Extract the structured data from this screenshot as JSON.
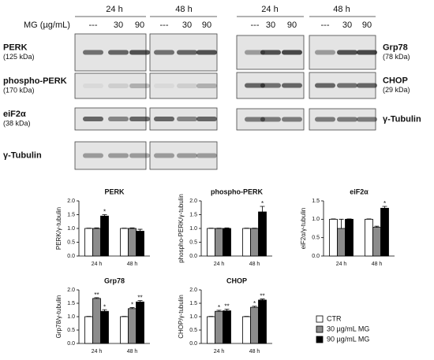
{
  "blots": {
    "left": {
      "times": [
        "24 h",
        "48 h"
      ],
      "dose_label": "MG (µg/mL)",
      "lanes": [
        "---",
        "30",
        "90",
        "---",
        "30",
        "90"
      ],
      "rows": [
        {
          "label": "PERK",
          "sub": "(125 kDa)"
        },
        {
          "label": "phospho-PERK",
          "sub": "(170 kDa)"
        },
        {
          "label": "eiF2α",
          "sub": "(38 kDa)"
        },
        {
          "label": "γ-Tubulin"
        }
      ]
    },
    "right": {
      "times": [
        "24 h",
        "48 h"
      ],
      "lanes": [
        "---",
        "30",
        "90",
        "---",
        "30",
        "90"
      ],
      "rows": [
        {
          "label": "Grp78",
          "sub": "(78 kDa)"
        },
        {
          "label": "CHOP",
          "sub": "(29 kDa)"
        },
        {
          "label": "γ-Tubulin"
        }
      ]
    }
  },
  "legend": {
    "items": [
      {
        "name": "CTR",
        "color": "#ffffff"
      },
      {
        "name": "30 µg/mL MG",
        "color": "#8c8c8c"
      },
      {
        "name": "90 µg/mL MG",
        "color": "#000000"
      }
    ]
  },
  "chart_data": [
    {
      "type": "bar",
      "title": "PERK",
      "y_label": "PERK/γ-tubulin",
      "categories": [
        "24 h",
        "48 h"
      ],
      "ylim": [
        0,
        2
      ],
      "yticks": [
        {
          "value": 0,
          "label": "0.0"
        },
        {
          "value": 0.5,
          "label": "0.5"
        },
        {
          "value": 1,
          "label": "1.0"
        },
        {
          "value": 1.5,
          "label": "1.5"
        },
        {
          "value": 2,
          "label": "2.0"
        }
      ],
      "series": [
        {
          "values": [
            1.0,
            1.0
          ],
          "errors": [
            0.01,
            0.01
          ],
          "significance": [
            null,
            null
          ]
        },
        {
          "values": [
            1.0,
            1.0
          ],
          "errors": [
            0.02,
            0.02
          ],
          "significance": [
            null,
            null
          ]
        },
        {
          "values": [
            1.45,
            0.9
          ],
          "errors": [
            0.05,
            0.07
          ],
          "significance": [
            "*",
            null
          ]
        }
      ]
    },
    {
      "type": "bar",
      "title": "phospho-PERK",
      "y_label": "phospho-PERK/γ-tubulin",
      "categories": [
        "24 h",
        "48 h"
      ],
      "ylim": [
        0,
        2
      ],
      "yticks": [
        {
          "value": 0,
          "label": "0.0"
        },
        {
          "value": 0.5,
          "label": "0.5"
        },
        {
          "value": 1,
          "label": "1.0"
        },
        {
          "value": 1.5,
          "label": "1.5"
        },
        {
          "value": 2,
          "label": "2.0"
        }
      ],
      "series": [
        {
          "values": [
            1.0,
            1.0
          ],
          "errors": [
            0.01,
            0.01
          ],
          "significance": [
            null,
            null
          ]
        },
        {
          "values": [
            1.0,
            1.0
          ],
          "errors": [
            0.01,
            0.01
          ],
          "significance": [
            null,
            null
          ]
        },
        {
          "values": [
            1.0,
            1.6
          ],
          "errors": [
            0.02,
            0.2
          ],
          "significance": [
            null,
            "*"
          ]
        }
      ]
    },
    {
      "type": "bar",
      "title": "eiF2α",
      "y_label": "eiF2α/γ-tubulin",
      "categories": [
        "24 h",
        "48 h"
      ],
      "ylim": [
        0,
        1.5
      ],
      "yticks": [
        {
          "value": 0,
          "label": "0.0"
        },
        {
          "value": 0.5,
          "label": "0.5"
        },
        {
          "value": 1,
          "label": "1.0"
        },
        {
          "value": 1.5,
          "label": "1.5"
        }
      ],
      "series": [
        {
          "values": [
            1.0,
            1.0
          ],
          "errors": [
            0.01,
            0.01
          ],
          "significance": [
            null,
            null
          ]
        },
        {
          "values": [
            0.75,
            0.78
          ],
          "errors": [
            0.25,
            0.03
          ],
          "significance": [
            null,
            null
          ]
        },
        {
          "values": [
            1.0,
            1.3
          ],
          "errors": [
            0.01,
            0.05
          ],
          "significance": [
            null,
            "*"
          ]
        }
      ]
    },
    {
      "type": "bar",
      "title": "Grp78",
      "y_label": "Grp78/γ-tubulin",
      "categories": [
        "24 h",
        "48 h"
      ],
      "ylim": [
        0,
        2
      ],
      "yticks": [
        {
          "value": 0,
          "label": "0.0"
        },
        {
          "value": 0.5,
          "label": "0.5"
        },
        {
          "value": 1,
          "label": "1.0"
        },
        {
          "value": 1.5,
          "label": "1.5"
        },
        {
          "value": 2,
          "label": "2.0"
        }
      ],
      "series": [
        {
          "values": [
            1.0,
            1.0
          ],
          "errors": [
            0.01,
            0.01
          ],
          "significance": [
            null,
            null
          ]
        },
        {
          "values": [
            1.68,
            1.3
          ],
          "errors": [
            0.03,
            0.04
          ],
          "significance": [
            "**",
            "*"
          ]
        },
        {
          "values": [
            1.2,
            1.55
          ],
          "errors": [
            0.06,
            0.05
          ],
          "significance": [
            "*",
            "**"
          ]
        }
      ]
    },
    {
      "type": "bar",
      "title": "CHOP",
      "y_label": "CHOP/γ-tubulin",
      "categories": [
        "24 h",
        "48 h"
      ],
      "ylim": [
        0,
        2
      ],
      "yticks": [
        {
          "value": 0,
          "label": "0.0"
        },
        {
          "value": 0.5,
          "label": "0.5"
        },
        {
          "value": 1,
          "label": "1.0"
        },
        {
          "value": 1.5,
          "label": "1.5"
        },
        {
          "value": 2,
          "label": "2.0"
        }
      ],
      "series": [
        {
          "values": [
            1.0,
            1.0
          ],
          "errors": [
            0.01,
            0.01
          ],
          "significance": [
            null,
            null
          ]
        },
        {
          "values": [
            1.2,
            1.35
          ],
          "errors": [
            0.04,
            0.04
          ],
          "significance": [
            "*",
            "*"
          ]
        },
        {
          "values": [
            1.22,
            1.62
          ],
          "errors": [
            0.06,
            0.04
          ],
          "significance": [
            "**",
            "**"
          ]
        }
      ]
    }
  ]
}
